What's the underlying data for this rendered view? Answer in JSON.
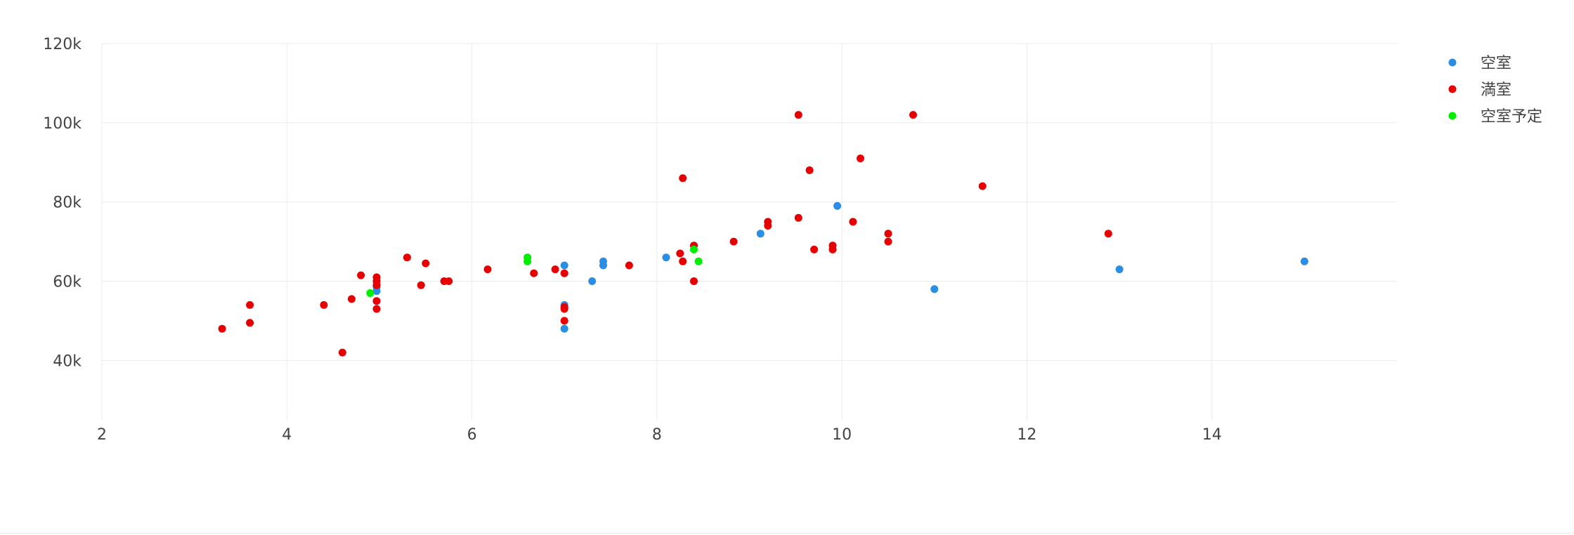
{
  "chart_data": {
    "type": "scatter",
    "title": "",
    "xlabel": "",
    "ylabel": "",
    "xlim": [
      2,
      16
    ],
    "ylim": [
      25000,
      120000
    ],
    "x_ticks": [
      2,
      4,
      6,
      8,
      10,
      12,
      14
    ],
    "x_tick_labels": [
      "2",
      "4",
      "6",
      "8",
      "10",
      "12",
      "14"
    ],
    "y_ticks": [
      40000,
      60000,
      80000,
      100000,
      120000
    ],
    "y_tick_labels": [
      "40k",
      "60k",
      "80k",
      "100k",
      "120k"
    ],
    "grid": true,
    "legend_position": "top-right",
    "series": [
      {
        "name": "空室",
        "color": "#2a8ee5",
        "points": [
          [
            4.97,
            57500
          ],
          [
            4.97,
            58500
          ],
          [
            7.0,
            64000
          ],
          [
            7.0,
            54000
          ],
          [
            7.0,
            48000
          ],
          [
            7.3,
            60000
          ],
          [
            7.42,
            64000
          ],
          [
            7.42,
            65000
          ],
          [
            8.1,
            66000
          ],
          [
            9.12,
            72000
          ],
          [
            9.95,
            79000
          ],
          [
            11.0,
            58000
          ],
          [
            13.0,
            63000
          ],
          [
            15.0,
            65000
          ]
        ]
      },
      {
        "name": "満室",
        "color": "#e60000",
        "points": [
          [
            3.3,
            48000
          ],
          [
            3.6,
            54000
          ],
          [
            3.6,
            49500
          ],
          [
            4.4,
            54000
          ],
          [
            4.6,
            42000
          ],
          [
            4.7,
            55500
          ],
          [
            4.8,
            61500
          ],
          [
            4.97,
            61000
          ],
          [
            4.97,
            60000
          ],
          [
            4.97,
            59000
          ],
          [
            4.97,
            55000
          ],
          [
            4.97,
            53000
          ],
          [
            5.3,
            66000
          ],
          [
            5.45,
            59000
          ],
          [
            5.5,
            64500
          ],
          [
            5.7,
            60000
          ],
          [
            5.75,
            60000
          ],
          [
            6.17,
            63000
          ],
          [
            6.67,
            62000
          ],
          [
            6.9,
            63000
          ],
          [
            7.0,
            62000
          ],
          [
            7.0,
            53500
          ],
          [
            7.0,
            53000
          ],
          [
            7.0,
            50000
          ],
          [
            7.7,
            64000
          ],
          [
            8.25,
            67000
          ],
          [
            8.28,
            86000
          ],
          [
            8.28,
            65000
          ],
          [
            8.4,
            69000
          ],
          [
            8.4,
            60000
          ],
          [
            8.83,
            70000
          ],
          [
            9.2,
            75000
          ],
          [
            9.2,
            74000
          ],
          [
            9.53,
            102000
          ],
          [
            9.53,
            76000
          ],
          [
            9.65,
            88000
          ],
          [
            9.7,
            68000
          ],
          [
            9.9,
            69000
          ],
          [
            9.9,
            68000
          ],
          [
            10.12,
            75000
          ],
          [
            10.2,
            91000
          ],
          [
            10.5,
            72000
          ],
          [
            10.5,
            70000
          ],
          [
            10.77,
            102000
          ],
          [
            11.52,
            84000
          ],
          [
            12.88,
            72000
          ]
        ]
      },
      {
        "name": "空室予定",
        "color": "#00ee00",
        "points": [
          [
            4.9,
            57000
          ],
          [
            6.6,
            66000
          ],
          [
            6.6,
            65000
          ],
          [
            8.4,
            68000
          ],
          [
            8.45,
            65000
          ]
        ]
      }
    ]
  }
}
